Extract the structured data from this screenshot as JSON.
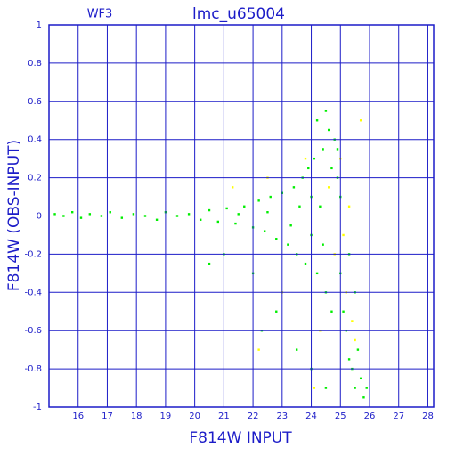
{
  "chart_data": {
    "type": "scatter",
    "title": "lmc_u65004",
    "annotation": "WF3",
    "x_label": "F814W INPUT",
    "y_label": "F814W (OBS-INPUT)",
    "xlim": [
      15,
      28.2
    ],
    "ylim": [
      -1,
      1
    ],
    "xticks": [
      16,
      17,
      18,
      19,
      20,
      21,
      22,
      23,
      24,
      25,
      26,
      27,
      28
    ],
    "yticks": [
      -1,
      -0.8,
      -0.6,
      -0.4,
      -0.2,
      0,
      0.2,
      0.4,
      0.6,
      0.8,
      1
    ],
    "grid": true,
    "axis_color": "#1c1cc8",
    "series": [
      {
        "color": "#00ee00",
        "x": [
          15.2,
          15.5,
          15.8,
          16.1,
          16.4,
          16.8,
          17.1,
          17.5,
          17.9,
          18.3,
          18.7,
          19.0,
          19.4,
          19.8,
          20.2,
          20.5,
          20.8,
          21.1,
          21.4,
          21.7,
          22.0,
          22.2,
          22.4,
          22.6,
          22.8,
          23.0,
          23.2,
          23.4,
          23.5,
          23.7,
          23.8,
          23.9,
          24.0,
          24.1,
          24.2,
          24.3,
          24.4,
          24.5,
          24.6,
          24.7,
          24.8,
          24.9,
          25.0,
          25.1,
          25.2,
          25.3,
          25.4,
          25.5,
          25.6,
          25.7,
          25.8,
          25.9,
          24.4,
          24.0,
          23.6,
          25.0,
          24.7,
          23.3,
          22.5,
          21.5,
          24.2,
          24.5,
          24.9,
          22.0,
          22.3,
          22.8,
          23.5,
          24.0,
          24.5,
          21.0,
          20.5,
          25.3,
          25.5
        ],
        "values": [
          0.01,
          0,
          0.02,
          -0.01,
          0.01,
          0,
          0.02,
          -0.01,
          0.01,
          0,
          -0.02,
          0.02,
          0,
          0.01,
          -0.02,
          0.03,
          -0.03,
          0.04,
          -0.04,
          0.05,
          -0.06,
          0.08,
          -0.08,
          0.1,
          -0.12,
          0.12,
          -0.15,
          0.15,
          -0.2,
          0.2,
          -0.25,
          0.25,
          -0.1,
          0.3,
          -0.3,
          0.05,
          0.35,
          -0.4,
          0.45,
          -0.5,
          0.4,
          0.2,
          -0.3,
          -0.5,
          -0.6,
          -0.75,
          -0.8,
          -0.9,
          -0.7,
          -0.85,
          -0.95,
          -0.9,
          -0.15,
          0.1,
          0.05,
          0.1,
          0.25,
          -0.05,
          0.02,
          0.01,
          0.5,
          0.55,
          0.35,
          -0.3,
          -0.6,
          -0.5,
          -0.7,
          -0.8,
          -0.9,
          -0.2,
          -0.25,
          -0.2,
          -0.4
        ]
      },
      {
        "color": "#ffff00",
        "x": [
          22.5,
          23.0,
          23.8,
          24.3,
          24.6,
          24.8,
          25.0,
          25.1,
          25.2,
          25.4,
          25.5,
          25.7,
          24.1,
          22.2,
          21.3,
          25.3
        ],
        "values": [
          0.2,
          -0.4,
          0.3,
          -0.6,
          0.15,
          -0.2,
          0.3,
          -0.1,
          -0.4,
          -0.55,
          -0.65,
          0.5,
          -0.9,
          -0.7,
          0.15,
          0.05
        ]
      }
    ]
  }
}
